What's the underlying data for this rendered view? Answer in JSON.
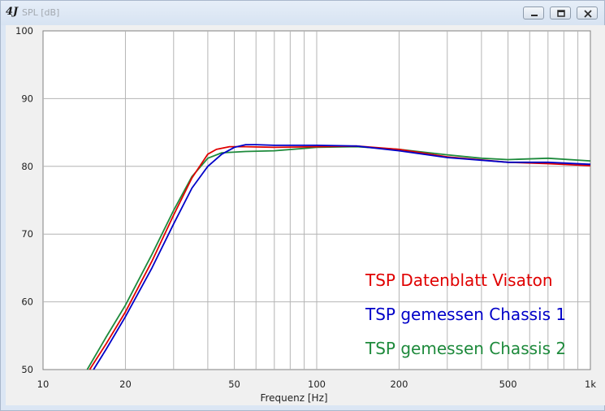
{
  "window": {
    "title": "SPL [dB]",
    "app_icon": "4J"
  },
  "chart_data": {
    "type": "line",
    "title": "",
    "xlabel": "Frequenz [Hz]",
    "ylabel": "",
    "xscale": "log",
    "xlim": [
      10,
      1000
    ],
    "ylim": [
      50,
      100
    ],
    "grid": true,
    "x_ticks": [
      10,
      20,
      50,
      100,
      200,
      500,
      1000
    ],
    "x_tick_labels": [
      "10",
      "20",
      "50",
      "100",
      "200",
      "500",
      "1k"
    ],
    "y_ticks": [
      50,
      60,
      70,
      80,
      90,
      100
    ],
    "y_tick_labels": [
      "50",
      "60",
      "70",
      "80",
      "90",
      "100"
    ],
    "legend_position": "bottom-right",
    "series": [
      {
        "name": "TSP Datenblatt Visaton",
        "color": "#e00000",
        "x": [
          14.8,
          17,
          20,
          25,
          30,
          35,
          40,
          43,
          48,
          55,
          70,
          100,
          140,
          200,
          300,
          500,
          700,
          1000
        ],
        "y": [
          50,
          53.8,
          58.5,
          66,
          72.8,
          78.3,
          81.8,
          82.5,
          82.9,
          82.9,
          82.8,
          82.9,
          83.0,
          82.5,
          81.4,
          80.6,
          80.4,
          80.1
        ]
      },
      {
        "name": "TSP gemessen Chassis 1",
        "color": "#0000c8",
        "x": [
          15.3,
          17,
          20,
          25,
          30,
          35,
          40,
          45,
          50,
          55,
          60,
          70,
          100,
          140,
          200,
          300,
          500,
          700,
          1000
        ],
        "y": [
          50,
          53,
          57.8,
          65,
          71.5,
          76.8,
          80.0,
          81.8,
          82.8,
          83.2,
          83.2,
          83.1,
          83.1,
          83.0,
          82.3,
          81.3,
          80.6,
          80.6,
          80.3
        ]
      },
      {
        "name": "TSP gemessen Chassis 2",
        "color": "#1e8a3c",
        "x": [
          14.5,
          17,
          20,
          25,
          30,
          35,
          40,
          45,
          55,
          70,
          100,
          140,
          200,
          300,
          400,
          500,
          700,
          1000
        ],
        "y": [
          50,
          54.8,
          59.5,
          67,
          73.5,
          78.5,
          81.2,
          82.0,
          82.2,
          82.3,
          82.8,
          82.9,
          82.5,
          81.7,
          81.2,
          81.0,
          81.2,
          80.8
        ]
      }
    ]
  }
}
